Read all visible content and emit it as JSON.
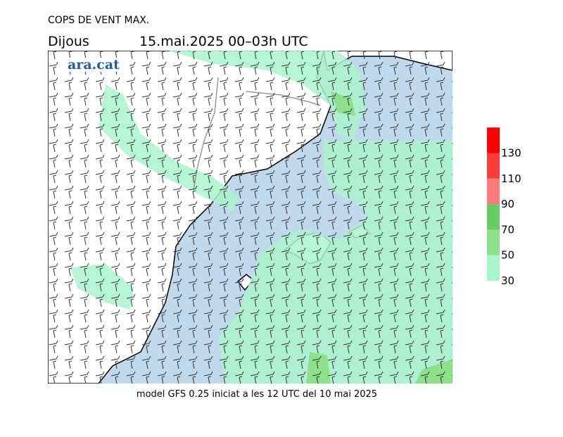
{
  "header": {
    "title": "COPS DE VENT MAX.",
    "day": "Dijous",
    "period": "15.mai.2025 00–03h UTC",
    "logo": "ara.cat"
  },
  "legend": {
    "ticks": [
      30,
      50,
      70,
      90,
      110,
      130
    ],
    "colors": [
      "#aaf5cc",
      "#8ee08a",
      "#66cc66",
      "#ff7b7b",
      "#ff3c3c",
      "#ff0000"
    ]
  },
  "footer": "model GFS 0.25 iniciat a les 12 UTC del 10 mai 2025"
}
